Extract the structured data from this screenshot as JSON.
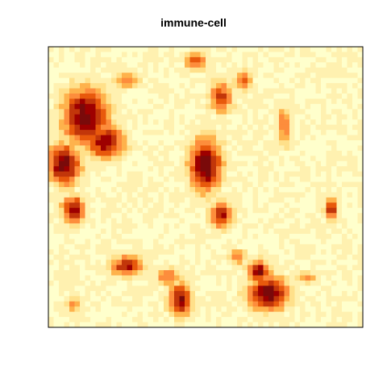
{
  "chart_data": {
    "type": "heatmap",
    "title": "immune-cell",
    "xlabel": "",
    "ylabel": "",
    "axes_visible": false,
    "grid": false,
    "legend": false,
    "colormap": [
      "#ffffcc",
      "#fff1b0",
      "#ffe08a",
      "#feb24c",
      "#fd8d3c",
      "#e8590c",
      "#c2360a",
      "#9e0000",
      "#7a0a0a"
    ],
    "value_range": [
      0,
      1
    ],
    "blobs": [
      {
        "cx": 0.12,
        "cy": 0.25,
        "rx": 0.1,
        "ry": 0.14,
        "v": 0.97
      },
      {
        "cx": 0.05,
        "cy": 0.42,
        "rx": 0.07,
        "ry": 0.1,
        "v": 0.95
      },
      {
        "cx": 0.18,
        "cy": 0.34,
        "rx": 0.08,
        "ry": 0.08,
        "v": 0.9
      },
      {
        "cx": 0.08,
        "cy": 0.58,
        "rx": 0.05,
        "ry": 0.07,
        "v": 0.85
      },
      {
        "cx": 0.5,
        "cy": 0.42,
        "rx": 0.07,
        "ry": 0.13,
        "v": 0.97
      },
      {
        "cx": 0.55,
        "cy": 0.6,
        "rx": 0.05,
        "ry": 0.06,
        "v": 0.82
      },
      {
        "cx": 0.7,
        "cy": 0.88,
        "rx": 0.09,
        "ry": 0.08,
        "v": 0.98
      },
      {
        "cx": 0.67,
        "cy": 0.8,
        "rx": 0.05,
        "ry": 0.05,
        "v": 0.9
      },
      {
        "cx": 0.9,
        "cy": 0.58,
        "rx": 0.025,
        "ry": 0.05,
        "v": 0.92
      },
      {
        "cx": 0.55,
        "cy": 0.18,
        "rx": 0.05,
        "ry": 0.08,
        "v": 0.72
      },
      {
        "cx": 0.62,
        "cy": 0.12,
        "rx": 0.04,
        "ry": 0.05,
        "v": 0.62
      },
      {
        "cx": 0.25,
        "cy": 0.78,
        "rx": 0.07,
        "ry": 0.05,
        "v": 0.78
      },
      {
        "cx": 0.42,
        "cy": 0.9,
        "rx": 0.05,
        "ry": 0.08,
        "v": 0.88
      },
      {
        "cx": 0.47,
        "cy": 0.05,
        "rx": 0.05,
        "ry": 0.05,
        "v": 0.6
      },
      {
        "cx": 0.25,
        "cy": 0.12,
        "rx": 0.06,
        "ry": 0.04,
        "v": 0.55
      },
      {
        "cx": 0.75,
        "cy": 0.28,
        "rx": 0.03,
        "ry": 0.1,
        "v": 0.58
      },
      {
        "cx": 0.82,
        "cy": 0.82,
        "rx": 0.05,
        "ry": 0.03,
        "v": 0.5
      },
      {
        "cx": 0.38,
        "cy": 0.82,
        "rx": 0.05,
        "ry": 0.04,
        "v": 0.6
      },
      {
        "cx": 0.6,
        "cy": 0.75,
        "rx": 0.04,
        "ry": 0.04,
        "v": 0.55
      },
      {
        "cx": 0.08,
        "cy": 0.92,
        "rx": 0.04,
        "ry": 0.04,
        "v": 0.45
      }
    ]
  }
}
